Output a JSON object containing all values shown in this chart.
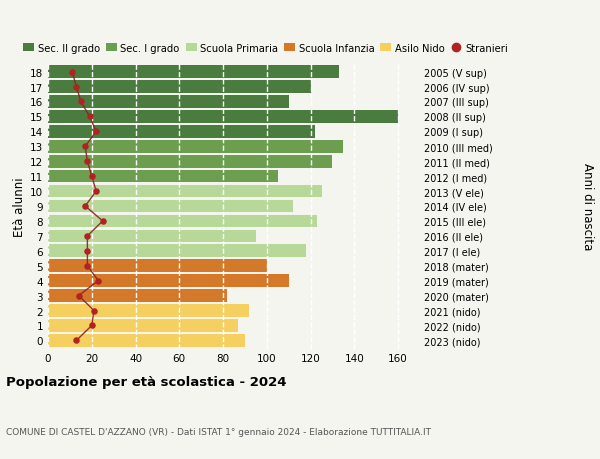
{
  "ages": [
    18,
    17,
    16,
    15,
    14,
    13,
    12,
    11,
    10,
    9,
    8,
    7,
    6,
    5,
    4,
    3,
    2,
    1,
    0
  ],
  "years": [
    "2005 (V sup)",
    "2006 (IV sup)",
    "2007 (III sup)",
    "2008 (II sup)",
    "2009 (I sup)",
    "2010 (III med)",
    "2011 (II med)",
    "2012 (I med)",
    "2013 (V ele)",
    "2014 (IV ele)",
    "2015 (III ele)",
    "2016 (II ele)",
    "2017 (I ele)",
    "2018 (mater)",
    "2019 (mater)",
    "2020 (mater)",
    "2021 (nido)",
    "2022 (nido)",
    "2023 (nido)"
  ],
  "values": [
    133,
    120,
    110,
    160,
    122,
    135,
    130,
    105,
    125,
    112,
    123,
    95,
    118,
    100,
    110,
    82,
    92,
    87,
    90
  ],
  "stranieri": [
    11,
    13,
    15,
    19,
    22,
    17,
    18,
    20,
    22,
    17,
    25,
    18,
    18,
    18,
    23,
    14,
    21,
    20,
    13
  ],
  "bar_colors": [
    "#4a7c3f",
    "#4a7c3f",
    "#4a7c3f",
    "#4a7c3f",
    "#4a7c3f",
    "#6d9e50",
    "#6d9e50",
    "#6d9e50",
    "#b8d89a",
    "#b8d89a",
    "#b8d89a",
    "#b8d89a",
    "#b8d89a",
    "#d4782a",
    "#d4782a",
    "#d4782a",
    "#f5d060",
    "#f5d060",
    "#f5d060"
  ],
  "legend_labels": [
    "Sec. II grado",
    "Sec. I grado",
    "Scuola Primaria",
    "Scuola Infanzia",
    "Asilo Nido",
    "Stranieri"
  ],
  "legend_colors": [
    "#4a7c3f",
    "#6d9e50",
    "#b8d89a",
    "#d4782a",
    "#f5d060",
    "#b22222"
  ],
  "ylabel_left": "Età alunni",
  "ylabel_right": "Anni di nascita",
  "title": "Popolazione per età scolastica - 2024",
  "subtitle": "COMUNE DI CASTEL D'AZZANO (VR) - Dati ISTAT 1° gennaio 2024 - Elaborazione TUTTITALIA.IT",
  "xlim": [
    0,
    170
  ],
  "xticks": [
    0,
    20,
    40,
    60,
    80,
    100,
    120,
    140,
    160
  ],
  "bg_color": "#f5f5f0",
  "grid_color": "#ffffff",
  "line_color": "#8b2020",
  "dot_color": "#b22222"
}
